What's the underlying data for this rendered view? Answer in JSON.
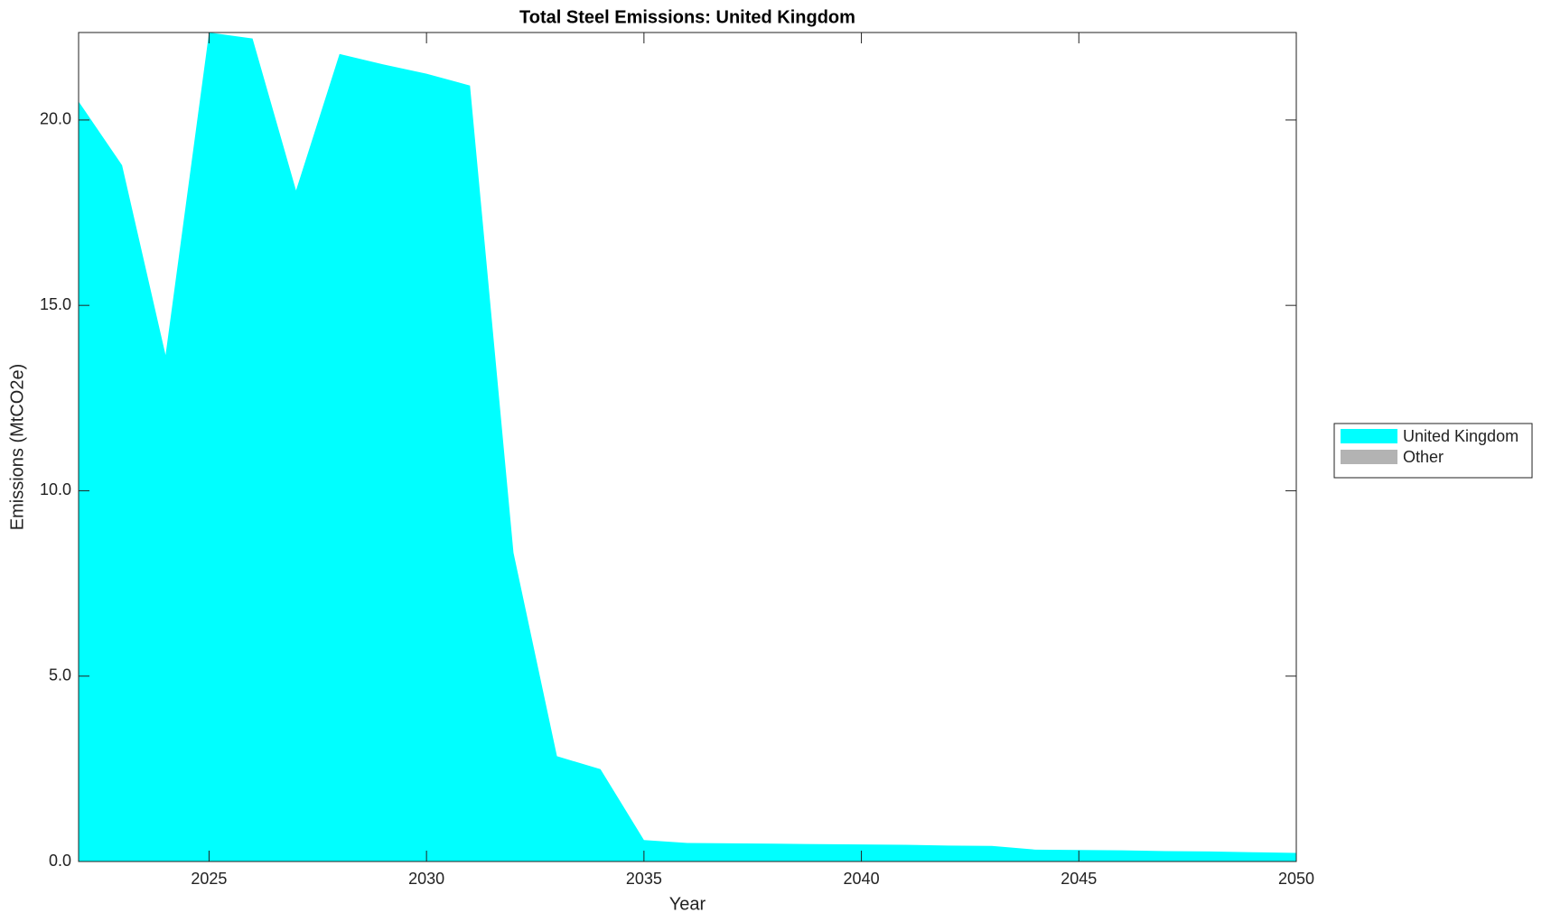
{
  "chart_data": {
    "type": "area",
    "stacked": true,
    "title": "Total Steel Emissions: United Kingdom",
    "x_label": "Year",
    "y_label": "Emissions (MtCO2e)",
    "x": [
      2022,
      2023,
      2024,
      2025,
      2026,
      2027,
      2028,
      2029,
      2030,
      2031,
      2032,
      2033,
      2034,
      2035,
      2036,
      2037,
      2038,
      2039,
      2040,
      2041,
      2042,
      2043,
      2044,
      2045,
      2046,
      2047,
      2048,
      2049,
      2050
    ],
    "series": [
      {
        "name": "United Kingdom",
        "color": "#00ffff",
        "values": [
          20.5,
          18.78,
          13.66,
          22.36,
          22.2,
          18.1,
          21.78,
          21.5,
          21.25,
          20.93,
          8.33,
          2.84,
          2.49,
          0.58,
          0.5,
          0.49,
          0.48,
          0.47,
          0.46,
          0.45,
          0.43,
          0.42,
          0.32,
          0.31,
          0.3,
          0.28,
          0.27,
          0.25,
          0.23
        ]
      },
      {
        "name": "Other",
        "color": "#b3b3b3",
        "values": [
          0,
          0,
          0,
          0,
          0,
          0,
          0,
          0,
          0,
          0,
          0,
          0,
          0,
          0,
          0,
          0,
          0,
          0,
          0,
          0,
          0,
          0,
          0,
          0,
          0,
          0,
          0,
          0,
          0
        ]
      }
    ],
    "xlim": [
      2022,
      2050
    ],
    "xticks": [
      2025,
      2030,
      2035,
      2040,
      2045,
      2050
    ],
    "ylim": [
      0,
      22.36
    ],
    "yticks": [
      {
        "value": 0,
        "label": "0.0"
      },
      {
        "value": 5,
        "label": "5.0"
      },
      {
        "value": 10,
        "label": "10.0"
      },
      {
        "value": 15,
        "label": "15.0"
      },
      {
        "value": 20,
        "label": "20.0"
      }
    ],
    "legend": "right"
  }
}
